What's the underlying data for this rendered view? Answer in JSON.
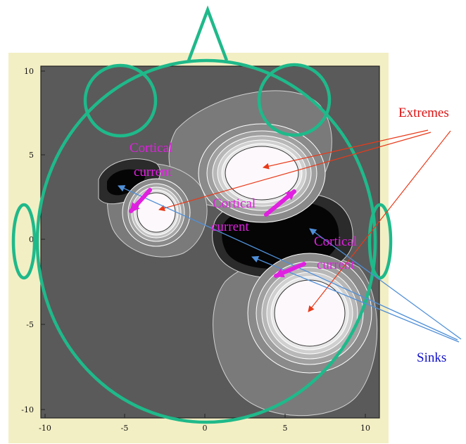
{
  "figure": {
    "x_ticks": [
      "-10",
      "-5",
      "0",
      "5",
      "10"
    ],
    "y_ticks": [
      "10",
      "5",
      "0",
      "-5",
      "-10"
    ],
    "labels": {
      "extremes": "Extremes",
      "sinks": "Sinks",
      "cortical_current_1": [
        "Cortical",
        "current"
      ],
      "cortical_current_2": [
        "Cortical",
        "current"
      ],
      "cortical_current_3": [
        "Cortical",
        "current"
      ]
    }
  },
  "colors": {
    "frame": "#f3efc4",
    "plot_background": "#5a5a5a",
    "head_outline": "#1fb98a",
    "current_arrows": "#e020e0",
    "extreme_arrows": "#e83a1a",
    "sink_arrows": "#4f8fd8"
  }
}
